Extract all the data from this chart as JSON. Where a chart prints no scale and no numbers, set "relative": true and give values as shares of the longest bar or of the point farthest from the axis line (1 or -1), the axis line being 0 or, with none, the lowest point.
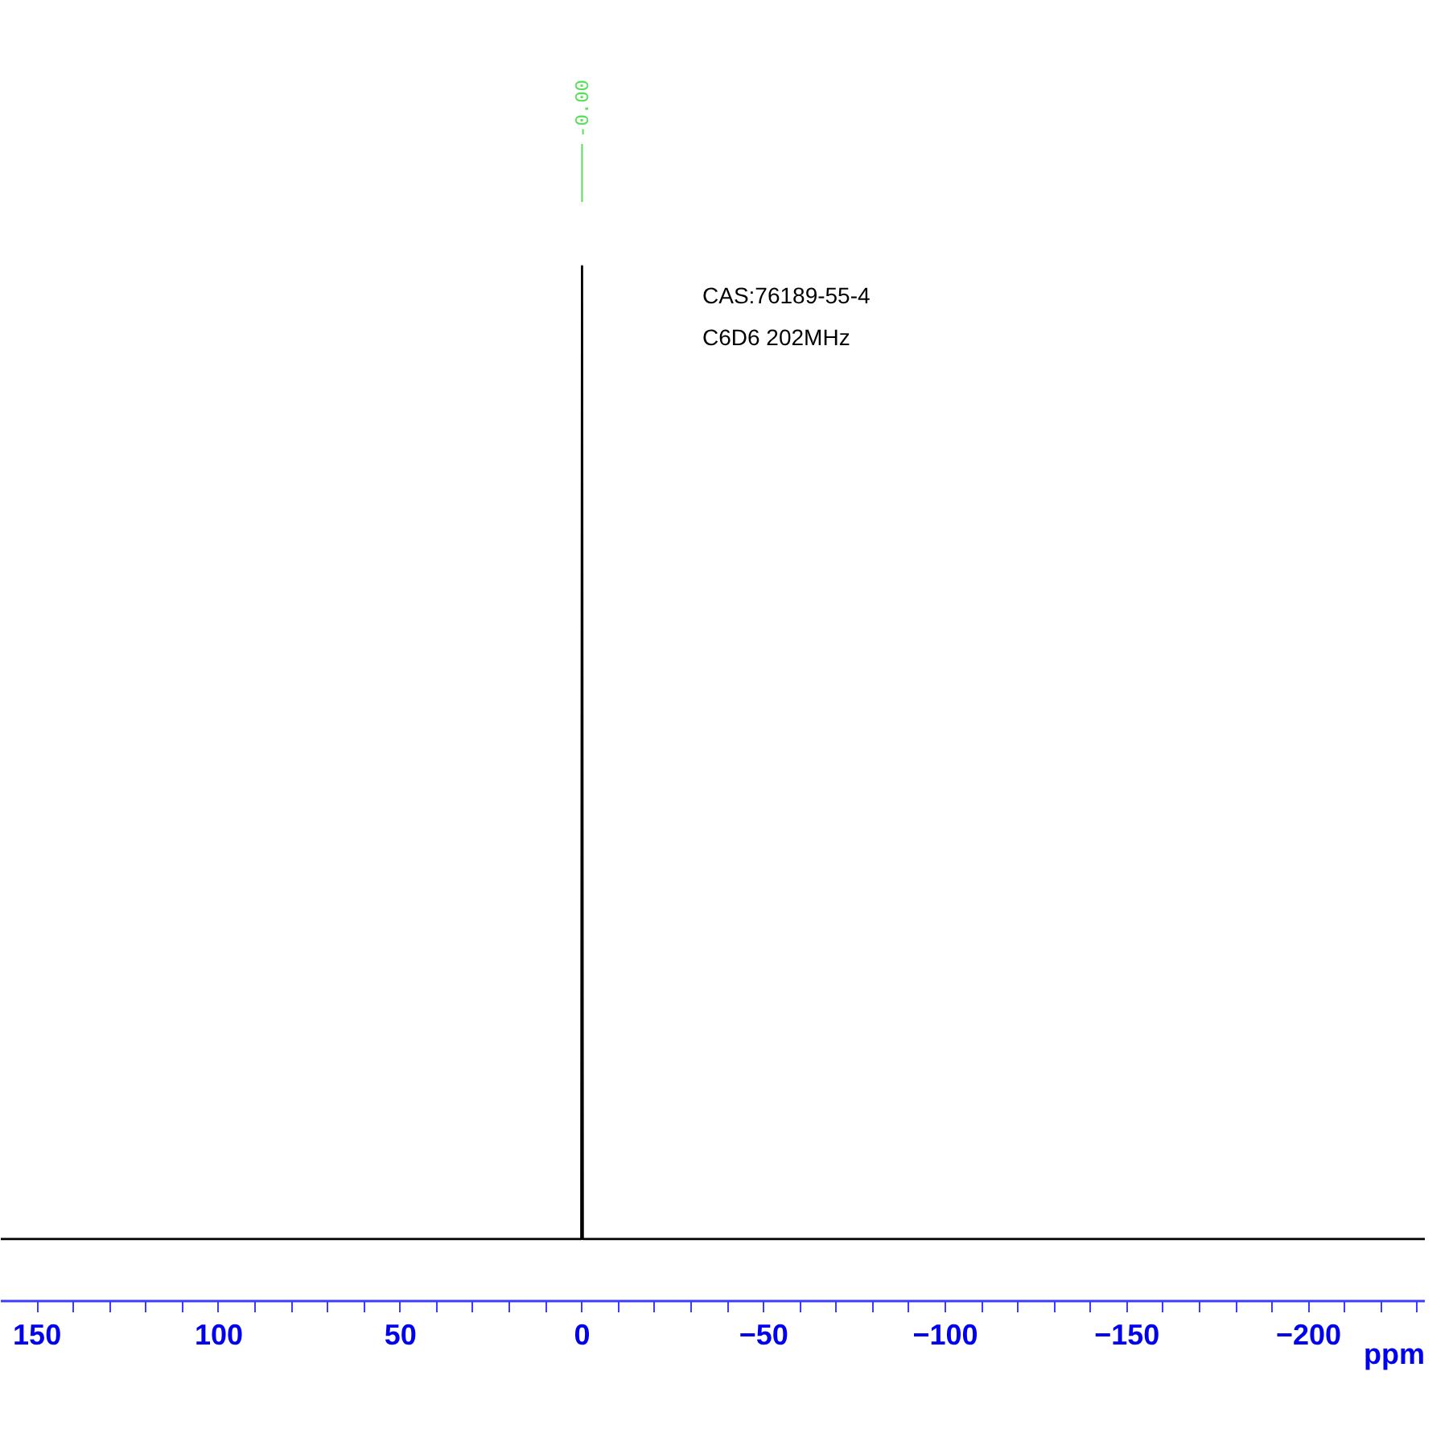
{
  "chart_data": {
    "type": "line",
    "relative": true,
    "xlabel": "ppm",
    "xlim": [
      160,
      -232
    ],
    "tick_labels": "x",
    "grid": false,
    "xticks": [
      150,
      {
        "value": 140,
        "label": null
      },
      {
        "value": 130,
        "label": null
      },
      {
        "value": 120,
        "label": null
      },
      {
        "value": 110,
        "label": null
      },
      100,
      {
        "value": 90,
        "label": null
      },
      {
        "value": 80,
        "label": null
      },
      {
        "value": 70,
        "label": null
      },
      {
        "value": 60,
        "label": null
      },
      50,
      {
        "value": 40,
        "label": null
      },
      {
        "value": 30,
        "label": null
      },
      {
        "value": 20,
        "label": null
      },
      {
        "value": 10,
        "label": null
      },
      0,
      {
        "value": -10,
        "label": null
      },
      {
        "value": -20,
        "label": null
      },
      {
        "value": -30,
        "label": null
      },
      {
        "value": -40,
        "label": null
      },
      {
        "value": -50,
        "label": "−50"
      },
      {
        "value": -60,
        "label": null
      },
      {
        "value": -70,
        "label": null
      },
      {
        "value": -80,
        "label": null
      },
      {
        "value": -90,
        "label": null
      },
      {
        "value": -100,
        "label": "−100"
      },
      {
        "value": -110,
        "label": null
      },
      {
        "value": -120,
        "label": null
      },
      {
        "value": -130,
        "label": null
      },
      {
        "value": -140,
        "label": null
      },
      {
        "value": -150,
        "label": "−150"
      },
      {
        "value": -160,
        "label": null
      },
      {
        "value": -170,
        "label": null
      },
      {
        "value": -180,
        "label": null
      },
      {
        "value": -190,
        "label": null
      },
      {
        "value": -200,
        "label": "−200"
      },
      {
        "value": -210,
        "label": null
      },
      {
        "value": -220,
        "label": null
      },
      {
        "value": -230,
        "label": null
      }
    ],
    "x": [
      160,
      150,
      140,
      130,
      120,
      110,
      100,
      90,
      80,
      70,
      60,
      50,
      40,
      30,
      20,
      10,
      1,
      0.2,
      0,
      -0.2,
      -1,
      -10,
      -20,
      -30,
      -40,
      -50,
      -60,
      -70,
      -80,
      -90,
      -100,
      -110,
      -120,
      -130,
      -140,
      -150,
      -160,
      -170,
      -180,
      -190,
      -200,
      -210,
      -220,
      -230,
      -232
    ],
    "series": [
      {
        "color": "#000000",
        "values": [
          0.06,
          0.06,
          0.06,
          0.06,
          0.06,
          0.06,
          0.06,
          0.06,
          0.06,
          0.06,
          0.06,
          0.06,
          0.06,
          0.06,
          0.06,
          0.06,
          0.06,
          0.06,
          1,
          0.06,
          0.06,
          0.06,
          0.06,
          0.06,
          0.06,
          0.06,
          0.06,
          0.06,
          0.06,
          0.06,
          0.06,
          0.06,
          0.06,
          0.06,
          0.06,
          0.06,
          0.06,
          0.06,
          0.06,
          0.06,
          0.06,
          0.06,
          0.06,
          0.06,
          0.06
        ]
      }
    ],
    "annotations": [
      "-0.00",
      "CAS:76189-55-4",
      "C6D6 202MHz"
    ]
  }
}
